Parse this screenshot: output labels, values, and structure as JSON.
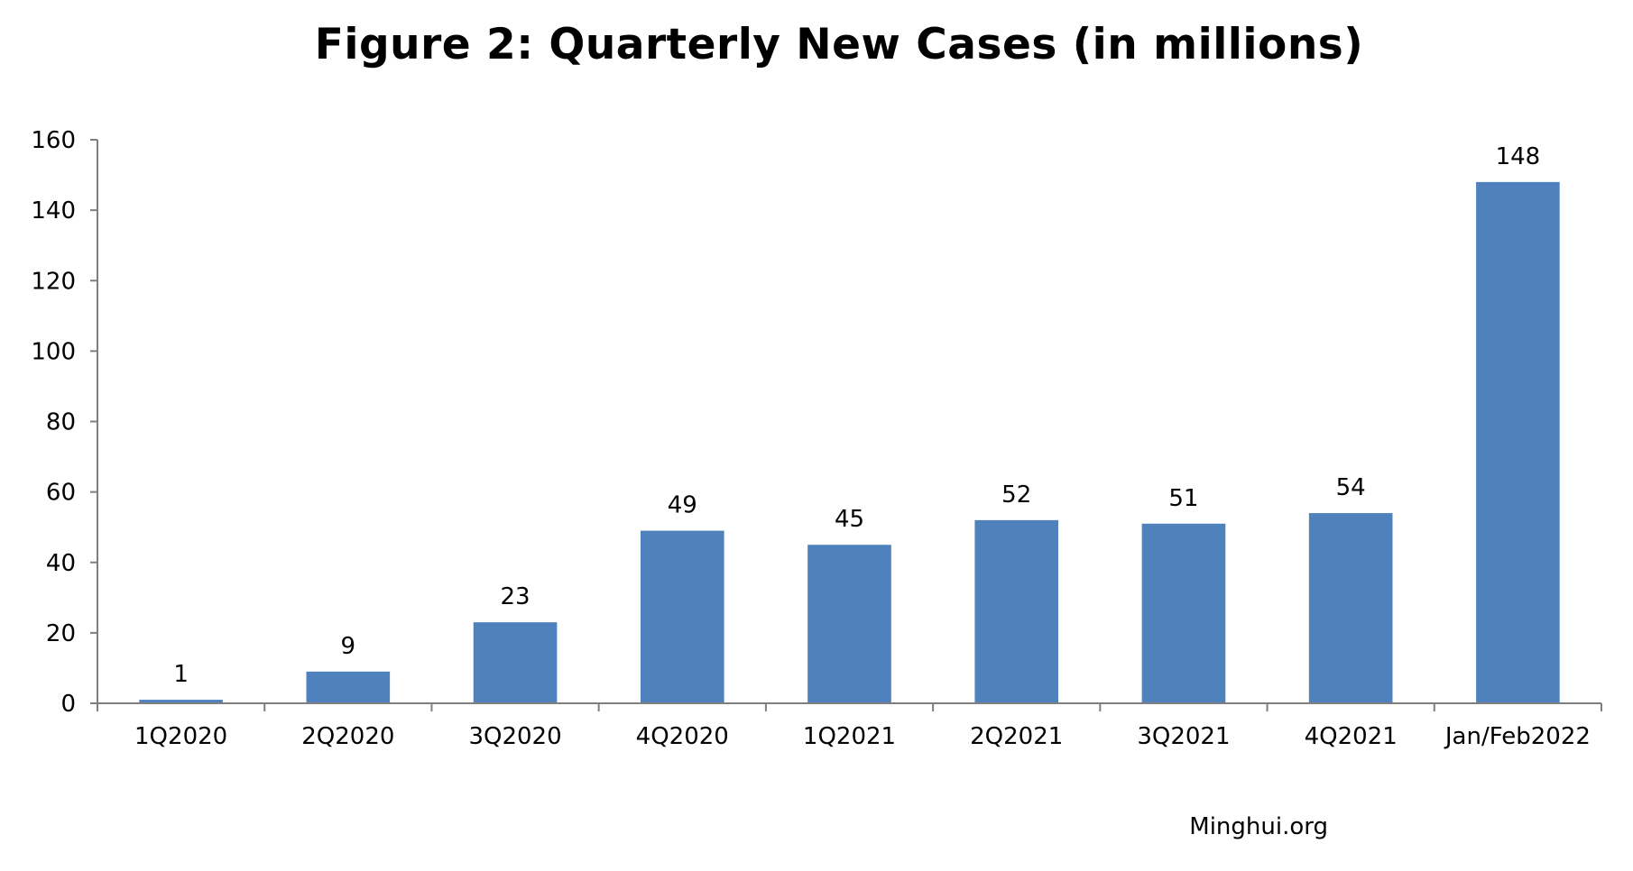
{
  "chart_data": {
    "type": "bar",
    "title": "Figure 2: Quarterly New Cases (in millions)",
    "xlabel": "",
    "ylabel": "",
    "categories": [
      "1Q2020",
      "2Q2020",
      "3Q2020",
      "4Q2020",
      "1Q2021",
      "2Q2021",
      "3Q2021",
      "4Q2021",
      "Jan/Feb2022"
    ],
    "values": [
      1,
      9,
      23,
      49,
      45,
      52,
      51,
      54,
      148
    ],
    "data_labels": [
      "1",
      "9",
      "23",
      "49",
      "45",
      "52",
      "51",
      "54",
      "148"
    ],
    "ylim": [
      0,
      160
    ],
    "yticks": [
      0,
      20,
      40,
      60,
      80,
      100,
      120,
      140,
      160
    ],
    "ytick_labels": [
      "0",
      "20",
      "40",
      "60",
      "80",
      "100",
      "120",
      "140",
      "160"
    ],
    "grid": false,
    "legend": "none",
    "bar_color": "#4F81BD",
    "axis_color": "#7F7F7F"
  },
  "source": "Minghui.org"
}
